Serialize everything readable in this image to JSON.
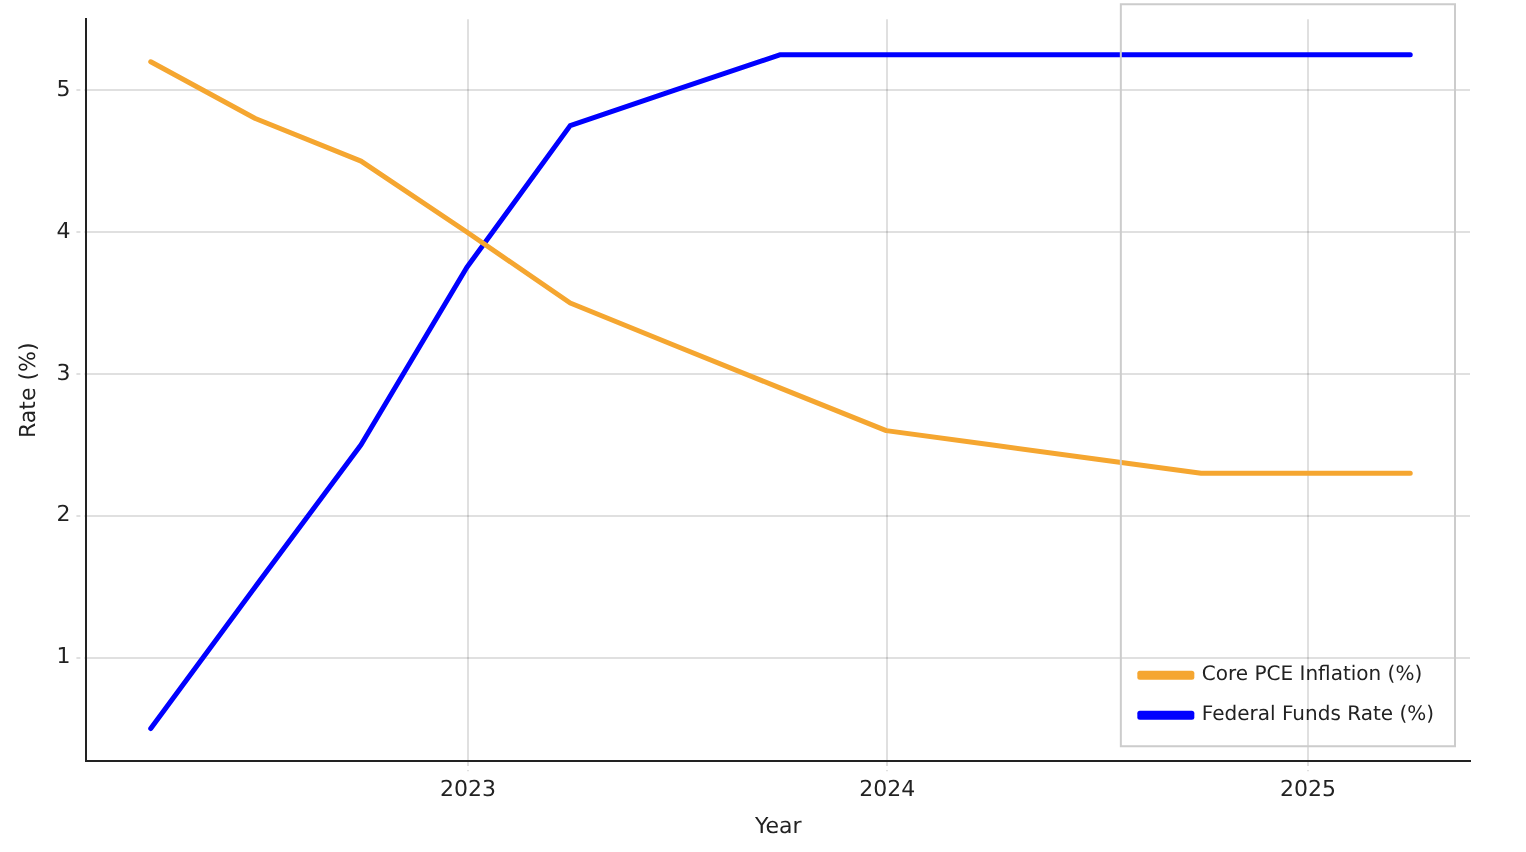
{
  "chart_data": {
    "type": "line",
    "xlabel": "Year",
    "ylabel": "Rate (%)",
    "xlim": [
      "2022-02-03",
      "2025-05-22"
    ],
    "xticks": [
      "2023",
      "2024",
      "2025"
    ],
    "ylim": [
      0.27,
      5.5
    ],
    "yticks": [
      1,
      2,
      3,
      4,
      5
    ],
    "grid": true,
    "legend": "bottom right",
    "marker": "none",
    "line_style": "solid",
    "series": [
      {
        "name": "Core PCE Inflation (%)",
        "color": "#f5a630",
        "x": [
          "2022-03-31",
          "2022-06-30",
          "2022-09-30",
          "2022-12-31",
          "2023-03-31",
          "2023-06-30",
          "2023-09-30",
          "2023-12-31",
          "2024-03-31",
          "2024-06-30",
          "2024-09-30",
          "2024-12-31",
          "2025-03-31"
        ],
        "values": [
          5.2,
          4.8,
          4.5,
          4.0,
          3.5,
          3.2,
          2.9,
          2.6,
          2.5,
          2.4,
          2.3,
          2.3,
          2.3
        ]
      },
      {
        "name": "Federal Funds Rate (%)",
        "color": "#0000ff",
        "x": [
          "2022-03-31",
          "2022-06-30",
          "2022-09-30",
          "2022-12-31",
          "2023-03-31",
          "2023-06-30",
          "2023-09-30",
          "2023-12-31",
          "2024-03-31",
          "2024-06-30",
          "2024-09-30",
          "2024-12-31",
          "2025-03-31"
        ],
        "values": [
          0.5,
          1.5,
          2.5,
          3.75,
          4.75,
          5.0,
          5.25,
          5.25,
          5.25,
          5.25,
          5.25,
          5.25,
          5.25
        ]
      }
    ]
  }
}
